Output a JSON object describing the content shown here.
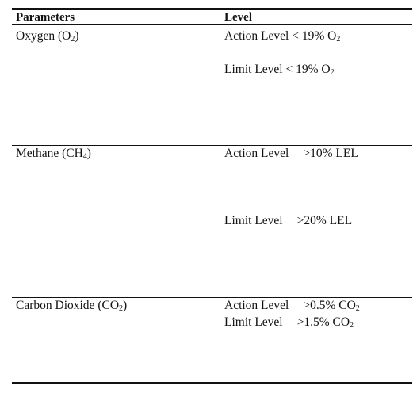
{
  "headers": {
    "parameters": "Parameters",
    "level": "Level"
  },
  "rows": [
    {
      "param_main": "Oxygen (O",
      "param_sub": "2",
      "param_close": ")",
      "levels": [
        {
          "label": "Action Level",
          "value_main": "< 19% O",
          "value_sub": "2"
        },
        {
          "label": "Limit Level",
          "value_main": "< 19% O",
          "value_sub": "2"
        }
      ]
    },
    {
      "param_main": "Methane (CH",
      "param_sub": "4",
      "param_close": ")",
      "levels": [
        {
          "label": "Action Level",
          "value_main": ">10% LEL",
          "value_sub": ""
        },
        {
          "label": "Limit Level",
          "value_main": ">20% LEL",
          "value_sub": ""
        }
      ]
    },
    {
      "param_main": "Carbon Dioxide (CO",
      "param_sub": "2",
      "param_close": ")",
      "levels": [
        {
          "label": "Action Level",
          "value_main": ">0.5% CO",
          "value_sub": "2"
        },
        {
          "label": "Limit Level",
          "value_main": ">1.5% CO",
          "value_sub": "2"
        }
      ]
    }
  ]
}
